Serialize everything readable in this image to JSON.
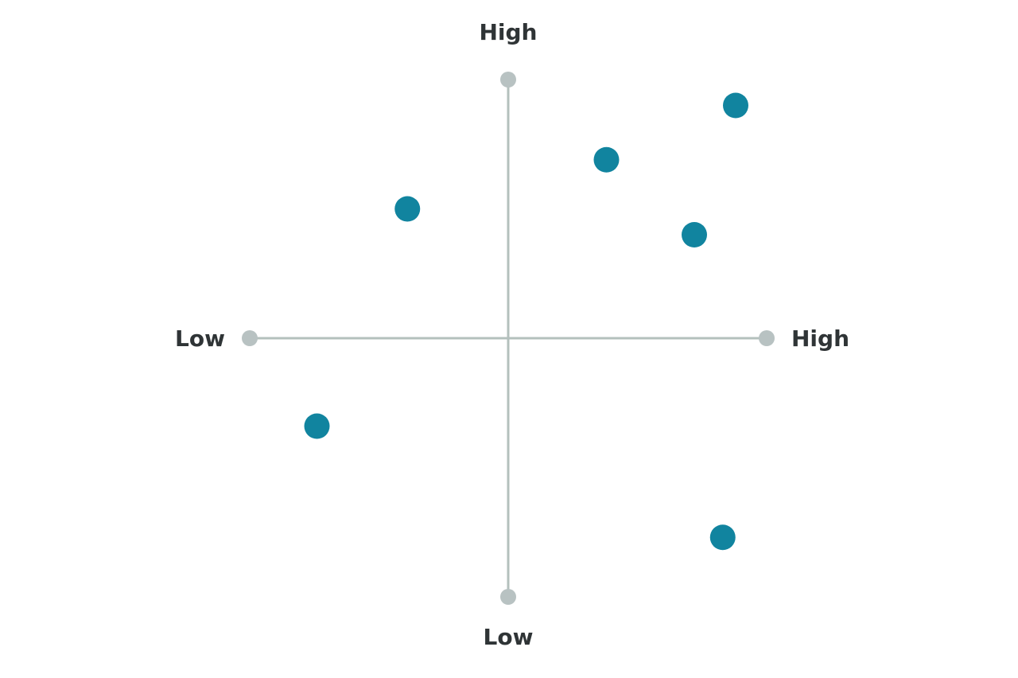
{
  "chart_data": {
    "type": "scatter",
    "x": [
      0.88,
      0.38,
      -0.39,
      0.72,
      -0.74,
      0.83
    ],
    "values": [
      0.9,
      0.69,
      0.5,
      0.4,
      -0.34,
      -0.77
    ],
    "color": "#11849f",
    "axis_color": "#b4c0bd",
    "xlim": [
      -1,
      1
    ],
    "ylim": [
      -1,
      1
    ],
    "xticks": [
      {
        "value": -1,
        "label": "Low"
      },
      {
        "value": 1,
        "label": "High"
      }
    ],
    "yticks": [
      {
        "value": -1,
        "label": "Low"
      },
      {
        "value": 1,
        "label": "High"
      }
    ]
  }
}
